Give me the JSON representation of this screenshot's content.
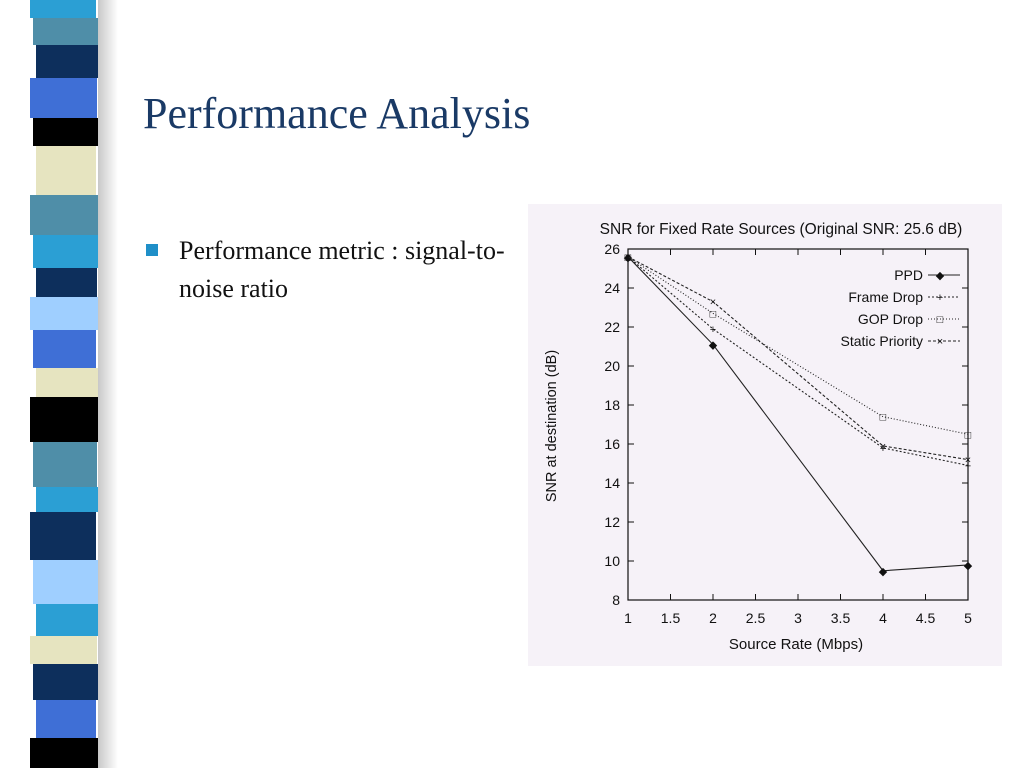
{
  "slide": {
    "title": "Performance Analysis",
    "bullets": [
      {
        "text": "Performance metric : signal-to-noise ratio"
      }
    ],
    "colors": {
      "title": "#1a3a66",
      "bullet": "#1f8fc8",
      "stripes": [
        "#2b9fd4",
        "#4f8ea8",
        "#0d2f5c",
        "#3f6fd6",
        "#000000",
        "#e6e4c0",
        "#9fcfff",
        "#ffffff"
      ]
    }
  },
  "chart_data": {
    "type": "line",
    "title": "SNR for Fixed Rate Sources (Original SNR: 25.6 dB)",
    "xlabel": "Source Rate (Mbps)",
    "ylabel": "SNR at destination (dB)",
    "xlim": [
      1,
      5
    ],
    "ylim": [
      8,
      26
    ],
    "xticks": [
      "1",
      "1.5",
      "2",
      "2.5",
      "3",
      "3.5",
      "4",
      "4.5",
      "5"
    ],
    "yticks": [
      "8",
      "10",
      "12",
      "14",
      "16",
      "18",
      "20",
      "22",
      "24",
      "26"
    ],
    "legend_position": "top-right",
    "grid": false,
    "series": [
      {
        "name": "PPD",
        "marker": "◆",
        "dash": "",
        "x": [
          1,
          2,
          4,
          5
        ],
        "y": [
          25.6,
          21.1,
          9.5,
          9.8
        ]
      },
      {
        "name": "Frame Drop",
        "marker": "+",
        "dash": "2,2",
        "x": [
          1,
          2,
          4,
          5
        ],
        "y": [
          25.6,
          21.9,
          15.8,
          14.9
        ]
      },
      {
        "name": "GOP Drop",
        "marker": "□",
        "dash": "1,2",
        "x": [
          1,
          2,
          4,
          5
        ],
        "y": [
          25.6,
          22.7,
          17.4,
          16.5
        ]
      },
      {
        "name": "Static Priority",
        "marker": "×",
        "dash": "3,2",
        "x": [
          1,
          2,
          4,
          5
        ],
        "y": [
          25.6,
          23.3,
          15.9,
          15.2
        ]
      }
    ]
  }
}
